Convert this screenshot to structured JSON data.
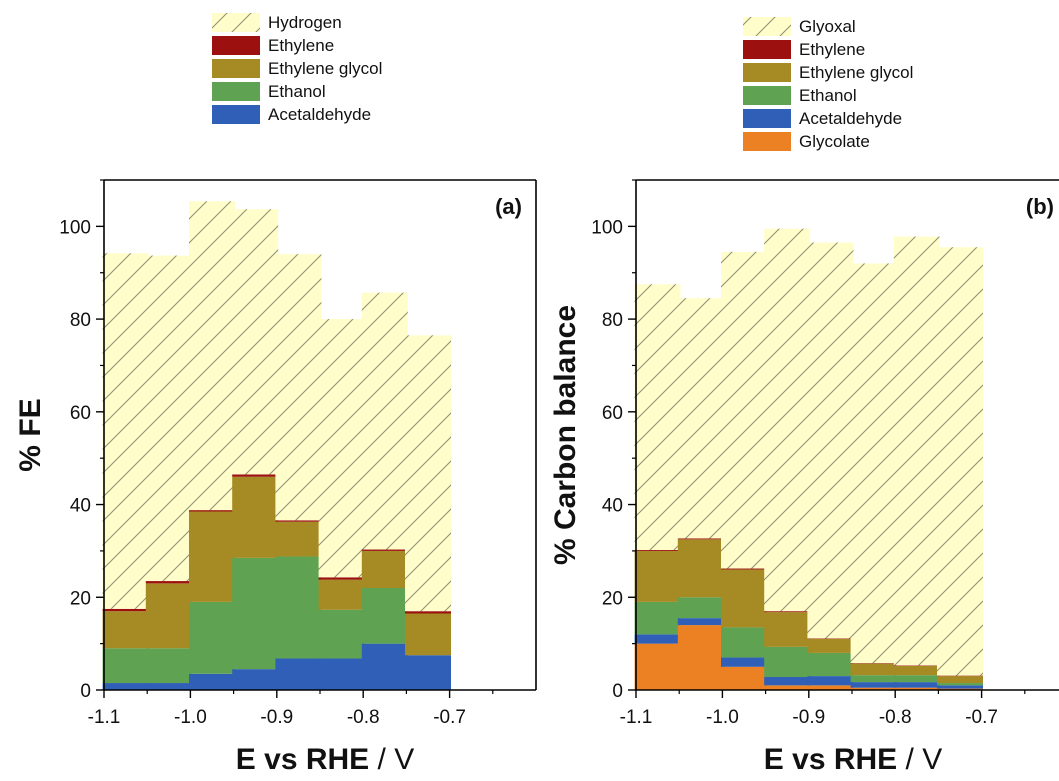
{
  "chart_data": [
    {
      "type": "bar",
      "stacked": true,
      "panel_label": "(a)",
      "xlabel_bold": "E vs RHE",
      "xlabel_rest": " / V",
      "ylabel": "% FE",
      "xlim": [
        -1.1,
        -0.6
      ],
      "ylim": [
        0,
        110
      ],
      "xticks": [
        "-1.1",
        "-1.0",
        "-0.9",
        "-0.8",
        "-0.7"
      ],
      "xtick_values": [
        -1.1,
        -1.0,
        -0.9,
        -0.8,
        -0.7
      ],
      "yticks": [
        "0",
        "20",
        "40",
        "60",
        "80",
        "100"
      ],
      "ytick_values": [
        0,
        20,
        40,
        60,
        80,
        100
      ],
      "legend": [
        "Hydrogen",
        "Ethylene",
        "Ethylene glycol",
        "Ethanol",
        "Acetaldehyde"
      ],
      "x": [
        -1.075,
        -1.025,
        -0.975,
        -0.925,
        -0.875,
        -0.825,
        -0.775,
        -0.725
      ],
      "series": [
        {
          "name": "Acetaldehyde",
          "color": "#2f5fb6",
          "values": [
            1.5,
            1.5,
            3.5,
            4.5,
            6.8,
            6.8,
            10,
            7.5
          ]
        },
        {
          "name": "Ethanol",
          "color": "#5fa352",
          "values": [
            7.5,
            7.5,
            15.5,
            24,
            22,
            10.5,
            12,
            0
          ]
        },
        {
          "name": "Ethylene glycol",
          "color": "#a68a24",
          "values": [
            8,
            14,
            19.5,
            17.5,
            7.5,
            6.5,
            8,
            9
          ]
        },
        {
          "name": "Ethylene",
          "color": "#9c1010",
          "values": [
            0.5,
            0.5,
            0.3,
            0.5,
            0.3,
            0.5,
            0.3,
            0.5
          ]
        },
        {
          "name": "Hydrogen",
          "color": "#fffdc9",
          "hatch": true,
          "values": [
            76.7,
            70.2,
            66.6,
            57.2,
            57.4,
            55.7,
            55.4,
            59.5
          ]
        }
      ]
    },
    {
      "type": "bar",
      "stacked": true,
      "panel_label": "(b)",
      "xlabel_bold": "E vs RHE",
      "xlabel_rest": " / V",
      "ylabel": "% Carbon balance",
      "xlim": [
        -1.1,
        -0.6
      ],
      "ylim": [
        0,
        110
      ],
      "xticks": [
        "-1.1",
        "-1.0",
        "-0.9",
        "-0.8",
        "-0.7"
      ],
      "xtick_values": [
        -1.1,
        -1.0,
        -0.9,
        -0.8,
        -0.7
      ],
      "yticks": [
        "0",
        "20",
        "40",
        "60",
        "80",
        "100"
      ],
      "ytick_values": [
        0,
        20,
        40,
        60,
        80,
        100
      ],
      "legend": [
        "Glyoxal",
        "Ethylene",
        "Ethylene glycol",
        "Ethanol",
        "Acetaldehyde",
        "Glycolate"
      ],
      "x": [
        -1.075,
        -1.025,
        -0.975,
        -0.925,
        -0.875,
        -0.825,
        -0.775,
        -0.725
      ],
      "series": [
        {
          "name": "Glycolate",
          "color": "#ec8124",
          "values": [
            10,
            14,
            5,
            1,
            1,
            0.5,
            0.5,
            0.3
          ]
        },
        {
          "name": "Acetaldehyde",
          "color": "#2f5fb6",
          "values": [
            2,
            1.5,
            2,
            1.8,
            2,
            1.2,
            1.2,
            0.7
          ]
        },
        {
          "name": "Ethanol",
          "color": "#5fa352",
          "values": [
            7,
            4.5,
            6.5,
            6.5,
            5,
            1.5,
            1.5,
            0.5
          ]
        },
        {
          "name": "Ethylene glycol",
          "color": "#a68a24",
          "values": [
            11,
            12.5,
            12.5,
            7.5,
            3,
            2.5,
            2,
            1.5
          ]
        },
        {
          "name": "Ethylene",
          "color": "#9c1010",
          "values": [
            0.2,
            0.2,
            0.2,
            0.2,
            0.1,
            0.1,
            0.1,
            0.1
          ]
        },
        {
          "name": "Glyoxal",
          "color": "#fffdc9",
          "hatch": true,
          "values": [
            57.3,
            51.8,
            68.3,
            82.5,
            85.4,
            86.2,
            92.5,
            92.4
          ]
        }
      ]
    }
  ]
}
